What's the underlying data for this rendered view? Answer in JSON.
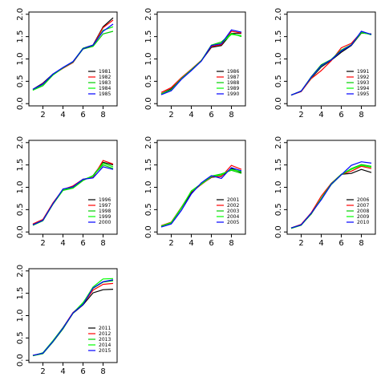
{
  "chart_data": [
    {
      "type": "line",
      "x": [
        1,
        2,
        3,
        4,
        5,
        6,
        7,
        8,
        9
      ],
      "xticks": [
        "2",
        "4",
        "6",
        "8"
      ],
      "yticks": [
        "0.0",
        "0.5",
        "1.0",
        "1.5",
        "2.0"
      ],
      "xlim": [
        0.6,
        9.4
      ],
      "ylim": [
        -0.05,
        2.05
      ],
      "legend_position": "bottom-right",
      "series": [
        {
          "name": "1981",
          "color": "#000000",
          "values": [
            0.32,
            0.46,
            0.66,
            0.8,
            0.93,
            1.24,
            1.31,
            1.72,
            1.92
          ]
        },
        {
          "name": "1982",
          "color": "#ff0000",
          "values": [
            0.31,
            0.45,
            0.65,
            0.79,
            0.92,
            1.23,
            1.3,
            1.7,
            1.87
          ]
        },
        {
          "name": "1983",
          "color": "#00cd00",
          "values": [
            0.3,
            0.4,
            0.64,
            0.8,
            0.93,
            1.22,
            1.28,
            1.56,
            1.62
          ]
        },
        {
          "name": "1984",
          "color": "#00ff00",
          "values": [
            0.3,
            0.43,
            0.65,
            0.8,
            0.94,
            1.24,
            1.3,
            1.64,
            1.72
          ]
        },
        {
          "name": "1985",
          "color": "#0000ff",
          "values": [
            0.32,
            0.44,
            0.66,
            0.81,
            0.94,
            1.23,
            1.31,
            1.62,
            1.78
          ]
        }
      ]
    },
    {
      "type": "line",
      "x": [
        1,
        2,
        3,
        4,
        5,
        6,
        7,
        8,
        9
      ],
      "xticks": [
        "2",
        "4",
        "6",
        "8"
      ],
      "yticks": [
        "0.0",
        "0.5",
        "1.0",
        "1.5",
        "2.0"
      ],
      "xlim": [
        0.6,
        9.4
      ],
      "ylim": [
        -0.05,
        2.05
      ],
      "legend_position": "bottom-right",
      "series": [
        {
          "name": "1986",
          "color": "#000000",
          "values": [
            0.22,
            0.33,
            0.56,
            0.76,
            0.96,
            1.26,
            1.3,
            1.57,
            1.57
          ]
        },
        {
          "name": "1987",
          "color": "#ff0000",
          "values": [
            0.25,
            0.36,
            0.58,
            0.77,
            0.97,
            1.28,
            1.32,
            1.62,
            1.58
          ]
        },
        {
          "name": "1988",
          "color": "#00cd00",
          "values": [
            0.21,
            0.3,
            0.55,
            0.75,
            0.96,
            1.31,
            1.38,
            1.57,
            1.5
          ]
        },
        {
          "name": "1989",
          "color": "#00ff00",
          "values": [
            0.22,
            0.31,
            0.56,
            0.76,
            0.96,
            1.3,
            1.35,
            1.55,
            1.52
          ]
        },
        {
          "name": "1990",
          "color": "#0000ff",
          "values": [
            0.2,
            0.29,
            0.54,
            0.74,
            0.95,
            1.3,
            1.34,
            1.65,
            1.6
          ]
        }
      ]
    },
    {
      "type": "line",
      "x": [
        1,
        2,
        3,
        4,
        5,
        6,
        7,
        8,
        9
      ],
      "xticks": [
        "2",
        "4",
        "6",
        "8"
      ],
      "yticks": [
        "0.0",
        "0.5",
        "1.0",
        "1.5",
        "2.0"
      ],
      "xlim": [
        0.6,
        9.4
      ],
      "ylim": [
        -0.05,
        2.05
      ],
      "legend_position": "bottom-right",
      "series": [
        {
          "name": "1991",
          "color": "#000000",
          "values": [
            0.19,
            0.28,
            0.57,
            0.82,
            0.97,
            1.15,
            1.3,
            1.58,
            1.56
          ]
        },
        {
          "name": "1992",
          "color": "#ff0000",
          "values": [
            0.19,
            0.27,
            0.56,
            0.74,
            0.96,
            1.25,
            1.35,
            1.6,
            1.55
          ]
        },
        {
          "name": "1993",
          "color": "#00cd00",
          "values": [
            0.19,
            0.28,
            0.6,
            0.87,
            0.99,
            1.2,
            1.32,
            1.6,
            1.54
          ]
        },
        {
          "name": "1994",
          "color": "#00ff00",
          "values": [
            0.19,
            0.28,
            0.58,
            0.84,
            0.98,
            1.18,
            1.31,
            1.59,
            1.55
          ]
        },
        {
          "name": "1995",
          "color": "#0000ff",
          "values": [
            0.19,
            0.28,
            0.59,
            0.85,
            0.98,
            1.18,
            1.31,
            1.62,
            1.55
          ]
        }
      ]
    },
    {
      "type": "line",
      "x": [
        1,
        2,
        3,
        4,
        5,
        6,
        7,
        8,
        9
      ],
      "xticks": [
        "2",
        "4",
        "6",
        "8"
      ],
      "yticks": [
        "0.0",
        "0.5",
        "1.0",
        "1.5",
        "2.0"
      ],
      "xlim": [
        0.6,
        9.4
      ],
      "ylim": [
        -0.05,
        2.05
      ],
      "legend_position": "bottom-right",
      "series": [
        {
          "name": "1996",
          "color": "#000000",
          "values": [
            0.17,
            0.27,
            0.64,
            0.94,
            1.02,
            1.16,
            1.26,
            1.56,
            1.5
          ]
        },
        {
          "name": "1997",
          "color": "#ff0000",
          "values": [
            0.18,
            0.28,
            0.65,
            0.95,
            1.03,
            1.18,
            1.22,
            1.6,
            1.52
          ]
        },
        {
          "name": "1998",
          "color": "#00cd00",
          "values": [
            0.15,
            0.25,
            0.62,
            0.93,
            0.98,
            1.15,
            1.26,
            1.5,
            1.42
          ]
        },
        {
          "name": "1999",
          "color": "#00ff00",
          "values": [
            0.16,
            0.26,
            0.63,
            0.94,
            1.0,
            1.17,
            1.25,
            1.54,
            1.46
          ]
        },
        {
          "name": "2000",
          "color": "#0000ff",
          "values": [
            0.16,
            0.26,
            0.63,
            0.96,
            1.01,
            1.18,
            1.21,
            1.46,
            1.4
          ]
        }
      ]
    },
    {
      "type": "line",
      "x": [
        1,
        2,
        3,
        4,
        5,
        6,
        7,
        8,
        9
      ],
      "xticks": [
        "2",
        "4",
        "6",
        "8"
      ],
      "yticks": [
        "0.0",
        "0.5",
        "1.0",
        "1.5",
        "2.0"
      ],
      "xlim": [
        0.6,
        9.4
      ],
      "ylim": [
        -0.05,
        2.05
      ],
      "legend_position": "bottom-right",
      "series": [
        {
          "name": "2001",
          "color": "#000000",
          "values": [
            0.14,
            0.21,
            0.53,
            0.88,
            1.07,
            1.22,
            1.25,
            1.42,
            1.33
          ]
        },
        {
          "name": "2002",
          "color": "#ff0000",
          "values": [
            0.14,
            0.22,
            0.55,
            0.9,
            1.06,
            1.23,
            1.24,
            1.49,
            1.4
          ]
        },
        {
          "name": "2003",
          "color": "#00cd00",
          "values": [
            0.12,
            0.2,
            0.53,
            0.92,
            1.08,
            1.25,
            1.3,
            1.38,
            1.31
          ]
        },
        {
          "name": "2004",
          "color": "#00ff00",
          "values": [
            0.13,
            0.21,
            0.54,
            0.91,
            1.07,
            1.24,
            1.28,
            1.4,
            1.35
          ]
        },
        {
          "name": "2005",
          "color": "#0000ff",
          "values": [
            0.11,
            0.18,
            0.48,
            0.85,
            1.1,
            1.26,
            1.2,
            1.44,
            1.37
          ]
        }
      ]
    },
    {
      "type": "line",
      "x": [
        1,
        2,
        3,
        4,
        5,
        6,
        7,
        8,
        9
      ],
      "xticks": [
        "2",
        "4",
        "6",
        "8"
      ],
      "yticks": [
        "0.0",
        "0.5",
        "1.0",
        "1.5",
        "2.0"
      ],
      "xlim": [
        0.6,
        9.4
      ],
      "ylim": [
        -0.05,
        2.05
      ],
      "legend_position": "bottom-right",
      "series": [
        {
          "name": "2006",
          "color": "#000000",
          "values": [
            0.09,
            0.16,
            0.4,
            0.75,
            1.08,
            1.29,
            1.31,
            1.4,
            1.33
          ]
        },
        {
          "name": "2007",
          "color": "#ff0000",
          "values": [
            0.09,
            0.17,
            0.43,
            0.8,
            1.09,
            1.29,
            1.36,
            1.47,
            1.42
          ]
        },
        {
          "name": "2008",
          "color": "#00cd00",
          "values": [
            0.08,
            0.15,
            0.41,
            0.73,
            1.06,
            1.28,
            1.42,
            1.51,
            1.47
          ]
        },
        {
          "name": "2009",
          "color": "#00ff00",
          "values": [
            0.09,
            0.16,
            0.41,
            0.75,
            1.08,
            1.29,
            1.4,
            1.49,
            1.45
          ]
        },
        {
          "name": "2010",
          "color": "#0000ff",
          "values": [
            0.09,
            0.16,
            0.42,
            0.72,
            1.07,
            1.28,
            1.49,
            1.57,
            1.54
          ]
        }
      ]
    },
    {
      "type": "line",
      "x": [
        1,
        2,
        3,
        4,
        5,
        6,
        7,
        8,
        9
      ],
      "xticks": [
        "2",
        "4",
        "6",
        "8"
      ],
      "yticks": [
        "0.0",
        "0.5",
        "1.0",
        "1.5",
        "2.0"
      ],
      "xlim": [
        0.6,
        9.4
      ],
      "ylim": [
        -0.05,
        2.05
      ],
      "legend_position": "bottom-right",
      "series": [
        {
          "name": "2011",
          "color": "#000000",
          "values": [
            0.11,
            0.16,
            0.42,
            0.71,
            1.05,
            1.24,
            1.51,
            1.58,
            1.59
          ]
        },
        {
          "name": "2012",
          "color": "#ff0000",
          "values": [
            0.11,
            0.16,
            0.43,
            0.73,
            1.07,
            1.26,
            1.57,
            1.7,
            1.72
          ]
        },
        {
          "name": "2013",
          "color": "#00cd00",
          "values": [
            0.1,
            0.15,
            0.41,
            0.7,
            1.06,
            1.29,
            1.61,
            1.75,
            1.78
          ]
        },
        {
          "name": "2014",
          "color": "#00ff00",
          "values": [
            0.1,
            0.17,
            0.44,
            0.73,
            1.05,
            1.28,
            1.64,
            1.82,
            1.83
          ]
        },
        {
          "name": "2015",
          "color": "#0000ff",
          "values": [
            0.11,
            0.16,
            0.42,
            0.72,
            1.06,
            1.25,
            1.62,
            1.76,
            1.8
          ]
        }
      ]
    }
  ]
}
